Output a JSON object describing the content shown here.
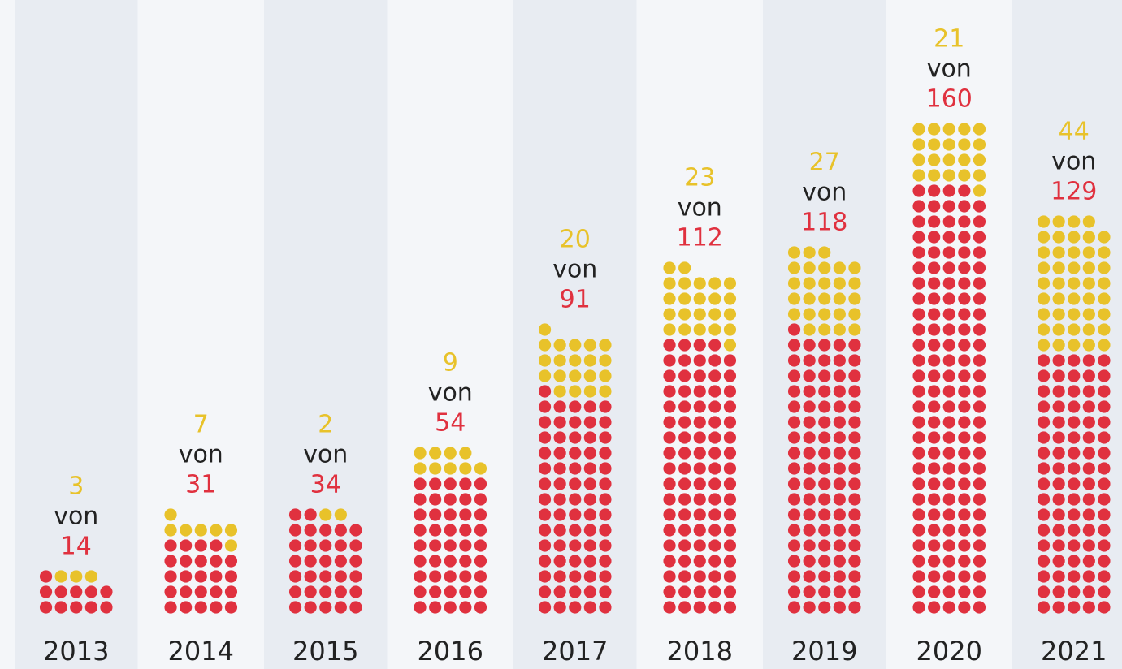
{
  "chart_data": {
    "type": "waffle",
    "categories": [
      "2013",
      "2014",
      "2015",
      "2016",
      "2017",
      "2018",
      "2019",
      "2020",
      "2021"
    ],
    "values": [
      14,
      31,
      34,
      54,
      91,
      112,
      118,
      160,
      129
    ],
    "subset_values": [
      3,
      7,
      2,
      9,
      20,
      23,
      27,
      21,
      44
    ],
    "connector": "von",
    "color": "#e0313f",
    "subset_color": "#e8c22a",
    "dots_per_row": 5
  }
}
